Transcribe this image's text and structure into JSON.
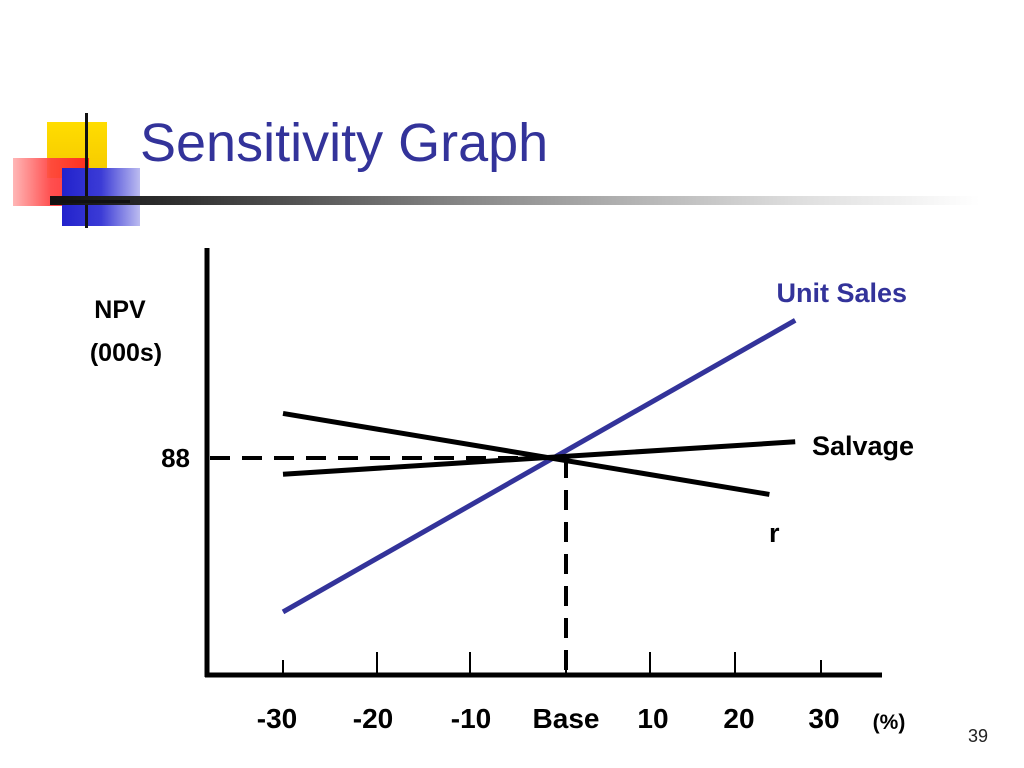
{
  "slide": {
    "title": "Sensitivity Graph",
    "page_number": "39"
  },
  "chart_data": {
    "type": "line",
    "title": "",
    "ylabel_line1": "NPV",
    "ylabel_line2": "(000s)",
    "xlabel": "(%)",
    "x_ticks": [
      "-30",
      "-20",
      "-10",
      "Base",
      "10",
      "20",
      "30"
    ],
    "x": [
      -30,
      -20,
      -10,
      0,
      10,
      20,
      30
    ],
    "base_npv_label": "88",
    "base_npv": 88,
    "series": [
      {
        "name": "Unit Sales",
        "color": "#33339a",
        "x": [
          -30,
          27
        ],
        "y": [
          -38,
          34
        ]
      },
      {
        "name": "Salvage",
        "color": "#000000",
        "x": [
          -30,
          27
        ],
        "y": [
          -4,
          4
        ]
      },
      {
        "name": "r",
        "color": "#000000",
        "x": [
          -30,
          24
        ],
        "y": [
          11,
          -9
        ]
      }
    ],
    "x_range": [
      -40,
      40
    ],
    "y_range": [
      -50,
      50
    ],
    "grid": false
  }
}
